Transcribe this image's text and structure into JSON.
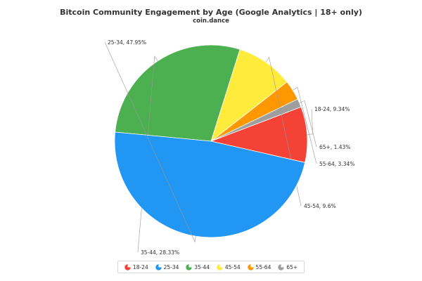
{
  "chart_data": {
    "type": "pie",
    "title": "Bitcoin Community Engagement by Age (Google Analytics | 18+ only)",
    "subtitle": "coin.dance",
    "slices": [
      {
        "name": "18-24",
        "value": 9.34,
        "label": "18-24, 9.34%",
        "color": "#f44336"
      },
      {
        "name": "65+",
        "value": 1.43,
        "label": "65+, 1.43%",
        "color": "#9e9e9e"
      },
      {
        "name": "55-64",
        "value": 3.34,
        "label": "55-64, 3.34%",
        "color": "#ff9800"
      },
      {
        "name": "45-54",
        "value": 9.6,
        "label": "45-54, 9.6%",
        "color": "#ffeb3b"
      },
      {
        "name": "35-44",
        "value": 28.33,
        "label": "35-44, 28.33%",
        "color": "#4caf50"
      },
      {
        "name": "25-34",
        "value": 47.95,
        "label": "25-34, 47.95%",
        "color": "#2196f3"
      }
    ],
    "legend": [
      {
        "name": "18-24",
        "color": "#f44336"
      },
      {
        "name": "25-34",
        "color": "#2196f3"
      },
      {
        "name": "35-44",
        "color": "#4caf50"
      },
      {
        "name": "45-54",
        "color": "#ffeb3b"
      },
      {
        "name": "55-64",
        "color": "#ff9800"
      },
      {
        "name": "65+",
        "color": "#9e9e9e"
      }
    ],
    "legend_position": "bottom"
  }
}
